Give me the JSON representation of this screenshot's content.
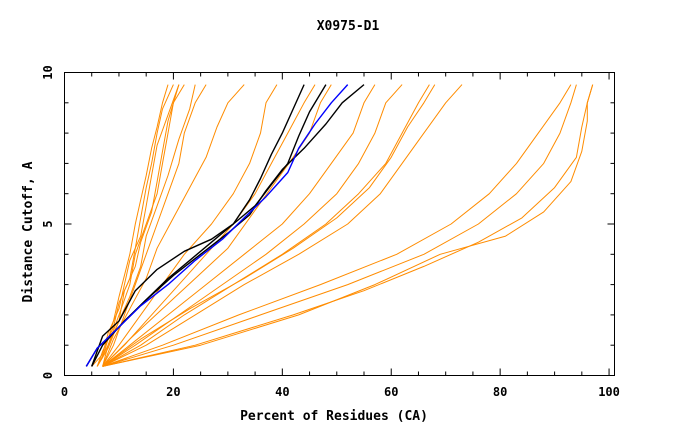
{
  "chart_data": {
    "type": "line",
    "title": "X0975-D1",
    "xlabel": "Percent of Residues (CA)",
    "ylabel": "Distance Cutoff, A",
    "xlim": [
      0,
      101
    ],
    "ylim": [
      0,
      10
    ],
    "x_ticks": [
      "0",
      "20",
      "40",
      "60",
      "80",
      "100"
    ],
    "y_ticks": [
      "0",
      "5",
      "10"
    ],
    "grid": false,
    "colors": {
      "orange": "#ff8c00",
      "black": "#000000",
      "blue": "#0000ff"
    },
    "series": [
      {
        "color": "orange",
        "points": [
          [
            6,
            0.3
          ],
          [
            7,
            0.6
          ],
          [
            8,
            1.2
          ],
          [
            9,
            1.8
          ],
          [
            10,
            2.6
          ],
          [
            11,
            3.3
          ],
          [
            12,
            4.0
          ],
          [
            13,
            5.0
          ],
          [
            14,
            5.8
          ],
          [
            15,
            6.6
          ],
          [
            16,
            7.5
          ],
          [
            17,
            8.2
          ],
          [
            18,
            9.0
          ],
          [
            19,
            9.6
          ]
        ]
      },
      {
        "color": "orange",
        "points": [
          [
            6,
            0.3
          ],
          [
            7,
            0.8
          ],
          [
            9,
            1.6
          ],
          [
            10,
            2.4
          ],
          [
            12,
            3.2
          ],
          [
            13,
            4.2
          ],
          [
            14,
            5.2
          ],
          [
            15,
            6.2
          ],
          [
            16,
            7.0
          ],
          [
            17,
            8.0
          ],
          [
            18,
            8.8
          ],
          [
            20,
            9.6
          ]
        ]
      },
      {
        "color": "orange",
        "points": [
          [
            5,
            0.3
          ],
          [
            7,
            0.7
          ],
          [
            8,
            1.4
          ],
          [
            10,
            2.2
          ],
          [
            11,
            3.0
          ],
          [
            12,
            3.8
          ],
          [
            14,
            4.6
          ],
          [
            15,
            5.6
          ],
          [
            16,
            6.6
          ],
          [
            17,
            7.6
          ],
          [
            19,
            8.6
          ],
          [
            21,
            9.6
          ]
        ]
      },
      {
        "color": "orange",
        "points": [
          [
            6,
            0.3
          ],
          [
            8,
            0.9
          ],
          [
            10,
            1.8
          ],
          [
            11,
            2.8
          ],
          [
            13,
            3.6
          ],
          [
            14,
            4.4
          ],
          [
            16,
            5.4
          ],
          [
            17,
            6.4
          ],
          [
            18,
            7.4
          ],
          [
            19,
            8.4
          ],
          [
            21,
            9.6
          ]
        ]
      },
      {
        "color": "orange",
        "points": [
          [
            6,
            0.3
          ],
          [
            8,
            1.0
          ],
          [
            10,
            2.0
          ],
          [
            12,
            3.0
          ],
          [
            13,
            4.0
          ],
          [
            15,
            5.0
          ],
          [
            17,
            6.0
          ],
          [
            18,
            7.0
          ],
          [
            19,
            8.0
          ],
          [
            20,
            9.0
          ],
          [
            22,
            9.6
          ]
        ]
      },
      {
        "color": "orange",
        "points": [
          [
            7,
            0.3
          ],
          [
            8,
            1.0
          ],
          [
            10,
            1.8
          ],
          [
            12,
            2.6
          ],
          [
            14,
            3.6
          ],
          [
            15,
            4.6
          ],
          [
            17,
            5.6
          ],
          [
            19,
            6.6
          ],
          [
            21,
            7.8
          ],
          [
            23,
            8.8
          ],
          [
            24,
            9.6
          ]
        ]
      },
      {
        "color": "orange",
        "points": [
          [
            7,
            0.3
          ],
          [
            9,
            1.0
          ],
          [
            11,
            2.0
          ],
          [
            13,
            3.0
          ],
          [
            15,
            4.0
          ],
          [
            17,
            5.0
          ],
          [
            19,
            6.0
          ],
          [
            21,
            7.0
          ],
          [
            22,
            8.0
          ],
          [
            24,
            9.0
          ],
          [
            26,
            9.6
          ]
        ]
      },
      {
        "color": "orange",
        "points": [
          [
            7,
            0.3
          ],
          [
            9,
            1.2
          ],
          [
            12,
            2.2
          ],
          [
            15,
            3.2
          ],
          [
            17,
            4.2
          ],
          [
            20,
            5.2
          ],
          [
            23,
            6.2
          ],
          [
            26,
            7.2
          ],
          [
            28,
            8.2
          ],
          [
            30,
            9.0
          ],
          [
            33,
            9.6
          ]
        ]
      },
      {
        "color": "orange",
        "points": [
          [
            7,
            0.3
          ],
          [
            10,
            1.0
          ],
          [
            14,
            2.0
          ],
          [
            18,
            3.0
          ],
          [
            22,
            4.0
          ],
          [
            27,
            5.0
          ],
          [
            31,
            6.0
          ],
          [
            34,
            7.0
          ],
          [
            36,
            8.0
          ],
          [
            37,
            9.0
          ],
          [
            39,
            9.6
          ]
        ]
      },
      {
        "color": "orange",
        "points": [
          [
            7,
            0.3
          ],
          [
            11,
            1.0
          ],
          [
            16,
            2.0
          ],
          [
            21,
            3.0
          ],
          [
            26,
            4.0
          ],
          [
            31,
            5.0
          ],
          [
            35,
            6.0
          ],
          [
            38,
            7.0
          ],
          [
            41,
            8.0
          ],
          [
            44,
            9.0
          ],
          [
            46,
            9.6
          ]
        ]
      },
      {
        "color": "orange",
        "points": [
          [
            7,
            0.3
          ],
          [
            12,
            1.2
          ],
          [
            18,
            2.2
          ],
          [
            24,
            3.2
          ],
          [
            30,
            4.2
          ],
          [
            34,
            5.2
          ],
          [
            38,
            6.2
          ],
          [
            42,
            7.2
          ],
          [
            45,
            8.0
          ],
          [
            47,
            9.0
          ],
          [
            49,
            9.6
          ]
        ]
      },
      {
        "color": "orange",
        "points": [
          [
            7,
            0.3
          ],
          [
            12,
            1.0
          ],
          [
            19,
            2.0
          ],
          [
            26,
            3.0
          ],
          [
            33,
            4.0
          ],
          [
            40,
            5.0
          ],
          [
            45,
            6.0
          ],
          [
            49,
            7.0
          ],
          [
            53,
            8.0
          ],
          [
            55,
            9.0
          ],
          [
            57,
            9.6
          ]
        ]
      },
      {
        "color": "orange",
        "points": [
          [
            7,
            0.3
          ],
          [
            13,
            1.0
          ],
          [
            21,
            2.0
          ],
          [
            29,
            3.0
          ],
          [
            37,
            4.0
          ],
          [
            44,
            5.0
          ],
          [
            50,
            6.0
          ],
          [
            54,
            7.0
          ],
          [
            57,
            8.0
          ],
          [
            59,
            9.0
          ],
          [
            62,
            9.6
          ]
        ]
      },
      {
        "color": "orange",
        "points": [
          [
            7,
            0.3
          ],
          [
            14,
            1.0
          ],
          [
            22,
            2.0
          ],
          [
            31,
            3.0
          ],
          [
            40,
            4.0
          ],
          [
            48,
            5.0
          ],
          [
            54,
            6.0
          ],
          [
            59,
            7.0
          ],
          [
            62,
            8.0
          ],
          [
            65,
            9.0
          ],
          [
            67,
            9.6
          ]
        ]
      },
      {
        "color": "orange",
        "points": [
          [
            7,
            0.3
          ],
          [
            14,
            1.2
          ],
          [
            23,
            2.2
          ],
          [
            33,
            3.2
          ],
          [
            42,
            4.2
          ],
          [
            50,
            5.2
          ],
          [
            56,
            6.2
          ],
          [
            60,
            7.2
          ],
          [
            63,
            8.2
          ],
          [
            66,
            9.0
          ],
          [
            68,
            9.6
          ]
        ]
      },
      {
        "color": "orange",
        "points": [
          [
            7,
            0.3
          ],
          [
            15,
            1.0
          ],
          [
            24,
            2.0
          ],
          [
            33,
            3.0
          ],
          [
            43,
            4.0
          ],
          [
            52,
            5.0
          ],
          [
            58,
            6.0
          ],
          [
            62,
            7.0
          ],
          [
            66,
            8.0
          ],
          [
            70,
            9.0
          ],
          [
            73,
            9.6
          ]
        ]
      },
      {
        "color": "orange",
        "points": [
          [
            7,
            0.3
          ],
          [
            18,
            1.0
          ],
          [
            32,
            2.0
          ],
          [
            47,
            3.0
          ],
          [
            61,
            4.0
          ],
          [
            71,
            5.0
          ],
          [
            78,
            6.0
          ],
          [
            83,
            7.0
          ],
          [
            87,
            8.0
          ],
          [
            91,
            9.0
          ],
          [
            93,
            9.6
          ]
        ]
      },
      {
        "color": "orange",
        "points": [
          [
            7,
            0.3
          ],
          [
            20,
            1.0
          ],
          [
            36,
            2.0
          ],
          [
            52,
            3.0
          ],
          [
            66,
            4.0
          ],
          [
            76,
            5.0
          ],
          [
            83,
            6.0
          ],
          [
            88,
            7.0
          ],
          [
            91,
            8.0
          ],
          [
            93,
            9.0
          ],
          [
            94,
            9.6
          ]
        ]
      },
      {
        "color": "orange",
        "points": [
          [
            7,
            0.3
          ],
          [
            25,
            1.0
          ],
          [
            43,
            2.0
          ],
          [
            57,
            3.0
          ],
          [
            69,
            4.0
          ],
          [
            81,
            4.6
          ],
          [
            88,
            5.4
          ],
          [
            93,
            6.4
          ],
          [
            95,
            7.4
          ],
          [
            96,
            8.4
          ],
          [
            96,
            9.0
          ],
          [
            97,
            9.6
          ]
        ]
      },
      {
        "color": "orange",
        "points": [
          [
            7,
            0.3
          ],
          [
            24,
            1.0
          ],
          [
            42,
            2.0
          ],
          [
            55,
            2.8
          ],
          [
            66,
            3.6
          ],
          [
            76,
            4.4
          ],
          [
            84,
            5.2
          ],
          [
            90,
            6.2
          ],
          [
            94,
            7.2
          ],
          [
            95,
            8.2
          ],
          [
            96,
            9.0
          ],
          [
            97,
            9.6
          ]
        ]
      },
      {
        "color": "black",
        "points": [
          [
            5,
            0.3
          ],
          [
            7,
            1.0
          ],
          [
            11,
            1.8
          ],
          [
            15,
            2.5
          ],
          [
            19,
            3.2
          ],
          [
            23,
            3.8
          ],
          [
            27,
            4.4
          ],
          [
            31,
            5.0
          ],
          [
            34,
            5.8
          ],
          [
            36,
            6.5
          ],
          [
            38,
            7.3
          ],
          [
            40,
            8.0
          ],
          [
            42,
            8.8
          ],
          [
            44,
            9.6
          ]
        ]
      },
      {
        "color": "black",
        "points": [
          [
            5,
            0.3
          ],
          [
            7,
            1.3
          ],
          [
            10,
            1.8
          ],
          [
            13,
            2.8
          ],
          [
            17,
            3.5
          ],
          [
            22,
            4.1
          ],
          [
            27,
            4.5
          ],
          [
            31,
            5.0
          ],
          [
            35,
            5.6
          ],
          [
            38,
            6.3
          ],
          [
            41,
            7.0
          ],
          [
            43,
            7.9
          ],
          [
            45,
            8.7
          ],
          [
            48,
            9.6
          ]
        ]
      },
      {
        "color": "black",
        "points": [
          [
            4,
            0.3
          ],
          [
            6,
            0.9
          ],
          [
            10,
            1.6
          ],
          [
            15,
            2.5
          ],
          [
            20,
            3.3
          ],
          [
            25,
            4.0
          ],
          [
            30,
            4.7
          ],
          [
            34,
            5.3
          ],
          [
            37,
            6.1
          ],
          [
            40,
            6.8
          ],
          [
            44,
            7.5
          ],
          [
            48,
            8.3
          ],
          [
            51,
            9.0
          ],
          [
            55,
            9.6
          ]
        ]
      },
      {
        "color": "blue",
        "points": [
          [
            4,
            0.3
          ],
          [
            6,
            0.9
          ],
          [
            10,
            1.6
          ],
          [
            14,
            2.3
          ],
          [
            19,
            3.0
          ],
          [
            24,
            3.8
          ],
          [
            29,
            4.5
          ],
          [
            33,
            5.2
          ],
          [
            37,
            5.9
          ],
          [
            41,
            6.7
          ],
          [
            43,
            7.5
          ],
          [
            46,
            8.3
          ],
          [
            49,
            9.0
          ],
          [
            52,
            9.6
          ]
        ]
      }
    ]
  }
}
